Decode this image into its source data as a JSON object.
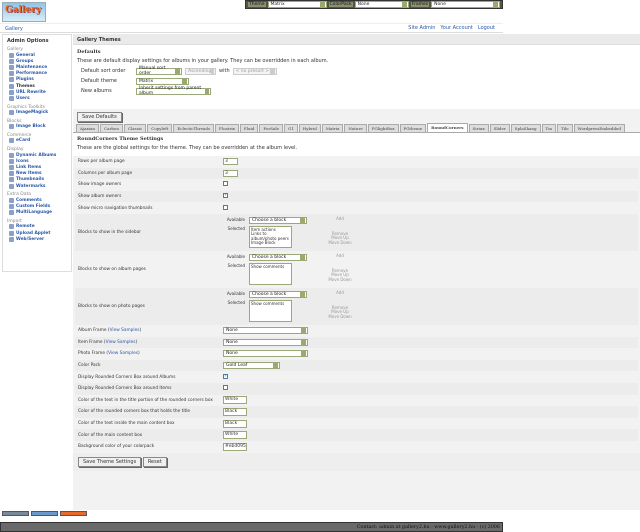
{
  "logo_text": "Gallery",
  "topbar": {
    "theme_label": "Theme",
    "theme_value": "Matrix",
    "colorpack_label": "ColorPack",
    "colorpack_value": "None",
    "frames_label": "Frames",
    "frames_value": "None"
  },
  "breadcrumb": "Gallery",
  "toplinks": [
    "Site Admin",
    "Your Account",
    "Logout"
  ],
  "sidebar": {
    "title": "Admin Options",
    "groups": [
      {
        "name": "Gallery",
        "items": [
          "General",
          "Groups",
          "Maintenance",
          "Performance",
          "Plugins",
          "Themes",
          "URL Rewrite",
          "Users"
        ]
      },
      {
        "name": "Graphics Toolkits",
        "items": [
          "ImageMagick"
        ]
      },
      {
        "name": "Blocks",
        "items": [
          "Image Block"
        ]
      },
      {
        "name": "Commerce",
        "items": [
          "eCard"
        ]
      },
      {
        "name": "Display",
        "items": [
          "Dynamic Albums",
          "Icons",
          "Link Items",
          "New Items",
          "Thumbnails",
          "Watermarks"
        ]
      },
      {
        "name": "Extra Data",
        "items": [
          "Comments",
          "Custom Fields",
          "MultiLanguage"
        ]
      },
      {
        "name": "Import",
        "items": [
          "Remote",
          "Upload Applet",
          "Web/Server"
        ]
      }
    ],
    "current": "Themes"
  },
  "main": {
    "title": "Gallery Themes",
    "defaults": {
      "heading": "Defaults",
      "description": "These are default display settings for albums in your gallery. They can be overridden in each album.",
      "sort_label": "Default sort order",
      "sort_value": "Manual sort order",
      "sort_dir": "Ascending",
      "with_label": "with",
      "with_value": "< no presort >",
      "theme_label": "Default theme",
      "theme_value": "Matrix",
      "new_albums_label": "New albums",
      "new_albums_value": "Inherit settings from parent album",
      "save_label": "Save Defaults"
    },
    "tabs": [
      "Ajaxian",
      "Carbon",
      "Classic",
      "Copyleft",
      "EclecticThreads",
      "Floatrix",
      "Fluid",
      "PorSale",
      "G1",
      "Hybrid",
      "Matrix",
      "Nature",
      "PGlightBox",
      "PGtheme",
      "RoundCorners",
      "Siriux",
      "Slider",
      "SplaShang",
      "Tm",
      "Tile",
      "WordpressEmbedded"
    ],
    "active_tab": "RoundCorners",
    "theme": {
      "heading": "RoundCorners Theme Settings",
      "description": "These are the global settings for the theme. They can be overridden at the album level.",
      "rows_label": "Rows per album page",
      "rows_value": "3",
      "cols_label": "Columns per album page",
      "cols_value": "3",
      "image_owners_label": "Show image owners",
      "image_owners": false,
      "album_owners_label": "Show album owners",
      "album_owners": true,
      "micro_label": "Show micro navigation thumbnails",
      "micro": false,
      "available_label": "Available",
      "selected_label": "Selected",
      "choose_block": "Choose a block",
      "add": "Add",
      "remove": "Remove",
      "move_up": "Move Up",
      "move_down": "Move Down",
      "sidebar_blocks_label": "Blocks to show in the sidebar",
      "sidebar_blocks": [
        "Item actions",
        "Links to album/photo peers",
        "Image Block"
      ],
      "album_blocks_label": "Blocks to show on album pages",
      "album_blocks": [
        "Show comments"
      ],
      "photo_blocks_label": "Blocks to show on photo pages",
      "photo_blocks": [
        "Show comments"
      ],
      "view_samples": "View Samples",
      "album_frame_label": "Album Frame",
      "album_frame": "None",
      "item_frame_label": "Item Frame",
      "item_frame": "None",
      "photo_frame_label": "Photo Frame",
      "photo_frame": "None",
      "color_pack_label": "Color Pack",
      "color_pack": "Gold Leaf",
      "rc_albums_label": "Display Rounded Corners Box around Albums",
      "rc_albums": true,
      "rc_items_label": "Display Rounded Corners Box around Items",
      "rc_items": false,
      "title_text_color_label": "Color of the text in the title portion of the rounded corners box",
      "title_text_color": "White",
      "title_box_color_label": "Color of the rounded corners box that holds the title",
      "title_box_color": "Black",
      "content_text_color_label": "Color of the text inside the main content box",
      "content_text_color": "Black",
      "content_box_color_label": "Color of the main content box",
      "content_box_color": "White",
      "bg_color_label": "Background color of your colorpack",
      "bg_color": "#ebd095",
      "save_label": "Save Theme Settings",
      "reset_label": "Reset"
    }
  },
  "footer": "Contact: admin at gallery2.hu - www.gallery2.hu - (c) 2006"
}
